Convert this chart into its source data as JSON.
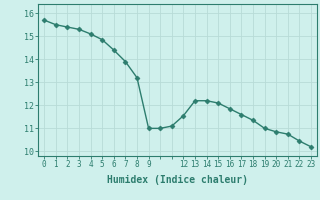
{
  "xlabel": "Humidex (Indice chaleur)",
  "x": [
    0,
    1,
    2,
    3,
    4,
    5,
    6,
    7,
    8,
    9,
    10,
    11,
    12,
    13,
    14,
    15,
    16,
    17,
    18,
    19,
    20,
    21,
    22,
    23
  ],
  "y": [
    15.7,
    15.5,
    15.4,
    15.3,
    15.1,
    14.85,
    14.4,
    13.9,
    13.2,
    11.0,
    11.0,
    11.1,
    11.55,
    12.2,
    12.2,
    12.1,
    11.85,
    11.6,
    11.35,
    11.0,
    10.85,
    10.75,
    10.45,
    10.2
  ],
  "line_color": "#2d7d6e",
  "marker": "D",
  "markersize": 2.5,
  "linewidth": 1.0,
  "bg_color": "#cff0ec",
  "grid_color_major": "#b8dbd7",
  "grid_color_minor": "#d8eeea",
  "tick_color": "#2d7d6e",
  "xlabel_color": "#2d7d6e",
  "ylim": [
    9.8,
    16.4
  ],
  "xlim": [
    -0.5,
    23.5
  ],
  "yticks": [
    10,
    11,
    12,
    13,
    14,
    15,
    16
  ],
  "xticks_shown": [
    0,
    1,
    2,
    3,
    4,
    5,
    6,
    7,
    8,
    9,
    12,
    13,
    14,
    15,
    16,
    17,
    18,
    19,
    20,
    21,
    22,
    23
  ],
  "xticks_all": [
    0,
    1,
    2,
    3,
    4,
    5,
    6,
    7,
    8,
    9,
    10,
    11,
    12,
    13,
    14,
    15,
    16,
    17,
    18,
    19,
    20,
    21,
    22,
    23
  ],
  "xlabel_fontsize": 7,
  "tick_fontsize": 5.5,
  "ytick_fontsize": 6
}
